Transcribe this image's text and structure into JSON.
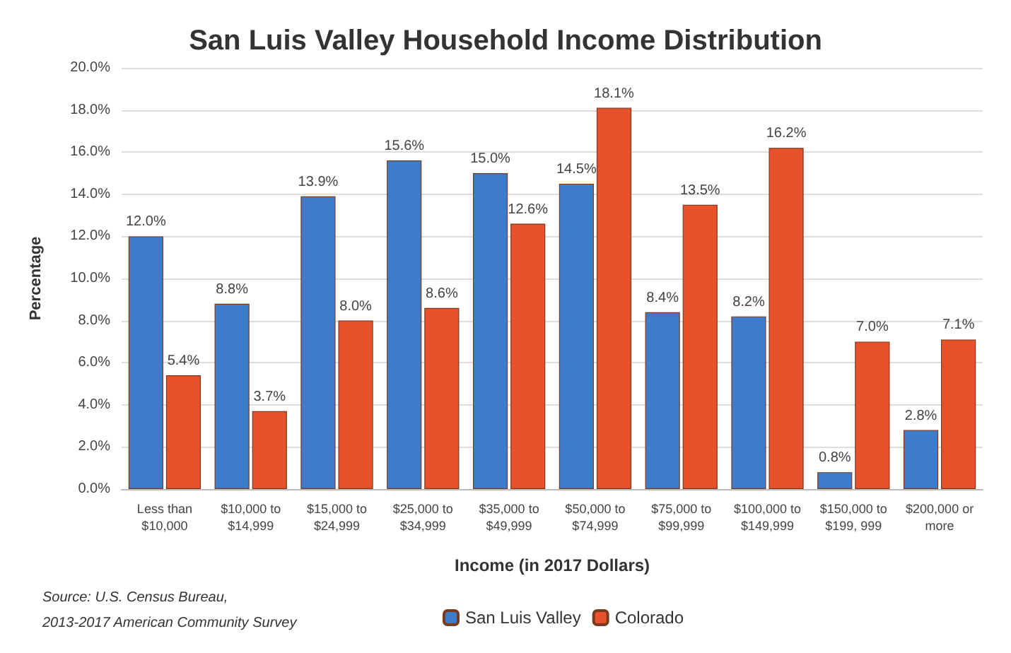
{
  "chart_data": {
    "type": "bar",
    "title": "San Luis Valley Household Income Distribution",
    "xlabel": "Income (in 2017 Dollars)",
    "ylabel": "Percentage",
    "categories": [
      "Less than $10,000",
      "$10,000 to $14,999",
      "$15,000 to $24,999",
      "$25,000 to $34,999",
      "$35,000 to $49,999",
      "$50,000 to $74,999",
      "$75,000 to $99,999",
      "$100,000 to $149,999",
      "$150,000 to $199, 999",
      "$200,000 or more"
    ],
    "series": [
      {
        "name": "San Luis Valley",
        "color": "#3d7cc9",
        "values": [
          12.0,
          8.8,
          13.9,
          15.6,
          15.0,
          14.5,
          8.4,
          8.2,
          0.8,
          2.8
        ],
        "value_labels": [
          "12.0%",
          "8.8%",
          "13.9%",
          "15.6%",
          "15.0%",
          "14.5%",
          "8.4%",
          "8.2%",
          "0.8%",
          "2.8%"
        ]
      },
      {
        "name": "Colorado",
        "color": "#e8522a",
        "values": [
          5.4,
          3.7,
          8.0,
          8.6,
          12.6,
          18.1,
          13.5,
          16.2,
          7.0,
          7.1
        ],
        "value_labels": [
          "5.4%",
          "3.7%",
          "8.0%",
          "8.6%",
          "12.6%",
          "18.1%",
          "13.5%",
          "16.2%",
          "7.0%",
          "7.1%"
        ]
      }
    ],
    "ylim": [
      0,
      20
    ],
    "yticks": [
      {
        "value": 0,
        "label": "0.0%"
      },
      {
        "value": 2,
        "label": "2.0%"
      },
      {
        "value": 4,
        "label": "4.0%"
      },
      {
        "value": 6,
        "label": "6.0%"
      },
      {
        "value": 8,
        "label": "8.0%"
      },
      {
        "value": 10,
        "label": "10.0%"
      },
      {
        "value": 12,
        "label": "12.0%"
      },
      {
        "value": 14,
        "label": "14.0%"
      },
      {
        "value": 16,
        "label": "16.0%"
      },
      {
        "value": 18,
        "label": "18.0%"
      },
      {
        "value": 20,
        "label": "20.0%"
      }
    ],
    "grid": "y",
    "legend": "bottom",
    "annotations": [
      "Source: U.S. Census Bureau,",
      "2013-2017 American Community Survey"
    ]
  }
}
